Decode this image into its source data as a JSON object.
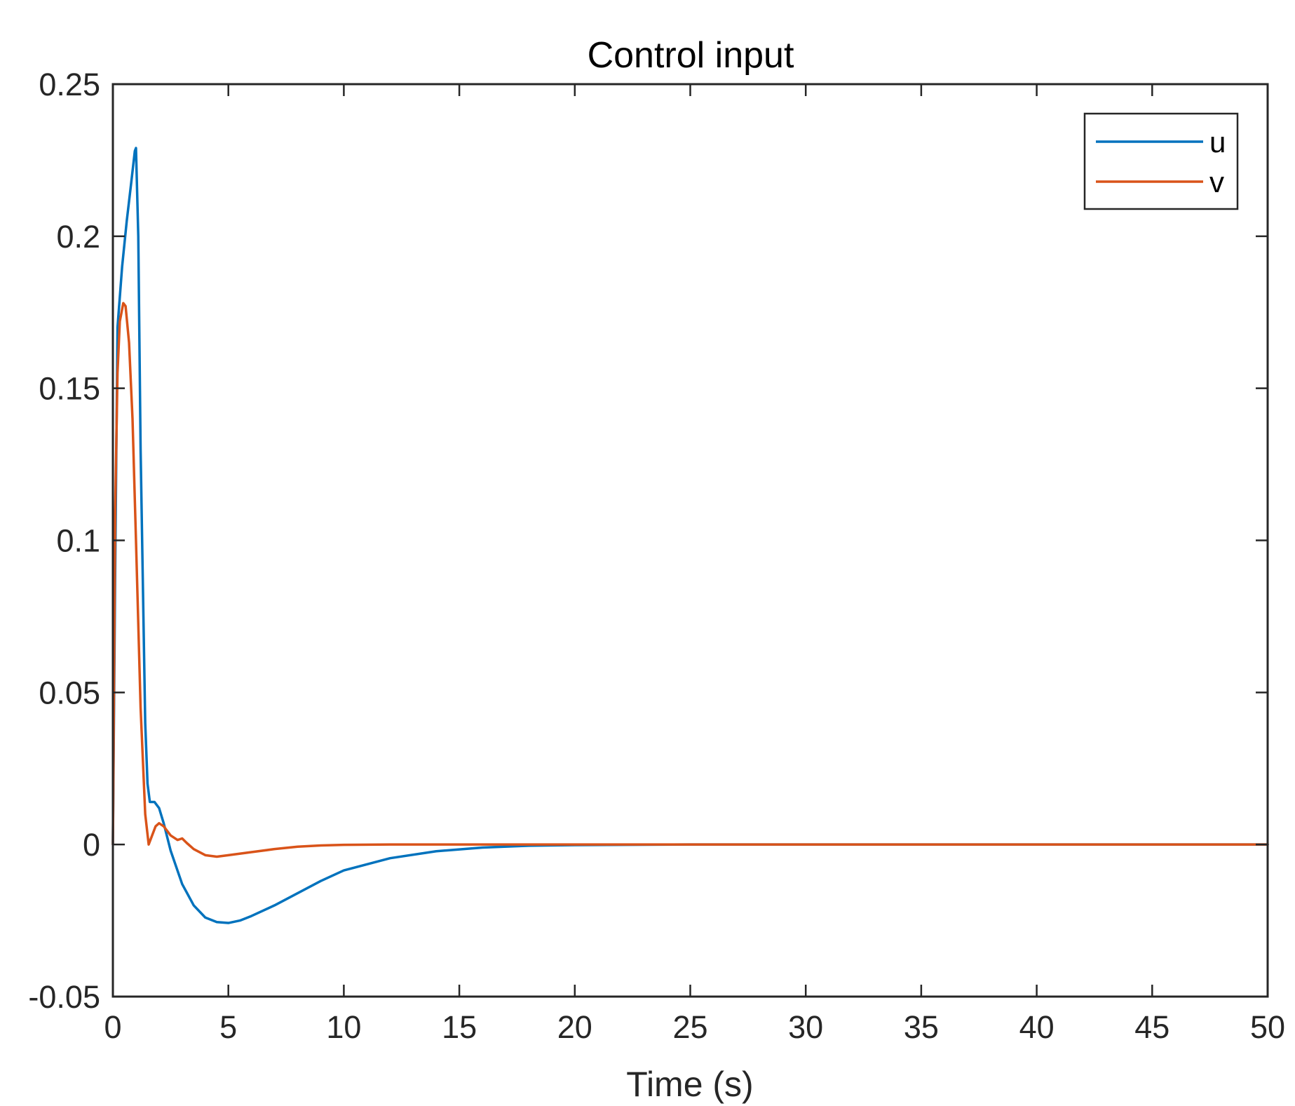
{
  "chart_data": {
    "type": "line",
    "title": "Control input",
    "xlabel": "Time (s)",
    "ylabel": "",
    "xlim": [
      0,
      50
    ],
    "ylim": [
      -0.05,
      0.25
    ],
    "x_ticks": [
      0,
      5,
      10,
      15,
      20,
      25,
      30,
      35,
      40,
      45,
      50
    ],
    "x_tick_labels": [
      "0",
      "5",
      "10",
      "15",
      "20",
      "25",
      "30",
      "35",
      "40",
      "45",
      "50"
    ],
    "y_ticks": [
      -0.05,
      0,
      0.05,
      0.1,
      0.15,
      0.2,
      0.25
    ],
    "y_tick_labels": [
      "-0.05",
      "0",
      "0.05",
      "0.1",
      "0.15",
      "0.2",
      "0.25"
    ],
    "grid": false,
    "legend_position": "top-right",
    "series": [
      {
        "name": "u",
        "color": "#0072BD",
        "x": [
          0,
          0.1,
          0.2,
          0.4,
          0.6,
          0.8,
          0.95,
          1.0,
          1.1,
          1.2,
          1.4,
          1.5,
          1.6,
          1.8,
          2.0,
          2.2,
          2.5,
          3.0,
          3.5,
          4.0,
          4.5,
          5.0,
          5.5,
          6.0,
          7.0,
          8.0,
          9.0,
          10.0,
          12.0,
          14.0,
          16.0,
          18.0,
          20.0,
          25.0,
          30.0,
          35.0,
          40.0,
          45.0,
          50.0
        ],
        "y": [
          0,
          0.09,
          0.17,
          0.19,
          0.205,
          0.218,
          0.228,
          0.229,
          0.2,
          0.13,
          0.04,
          0.02,
          0.014,
          0.014,
          0.012,
          0.007,
          -0.002,
          -0.013,
          -0.02,
          -0.024,
          -0.0255,
          -0.0258,
          -0.025,
          -0.0235,
          -0.02,
          -0.016,
          -0.012,
          -0.0085,
          -0.0045,
          -0.0022,
          -0.001,
          -0.0004,
          -0.0002,
          0,
          0,
          0,
          0,
          0,
          0
        ]
      },
      {
        "name": "v",
        "color": "#D95319",
        "x": [
          0,
          0.1,
          0.2,
          0.3,
          0.45,
          0.55,
          0.7,
          0.85,
          1.0,
          1.2,
          1.4,
          1.55,
          1.7,
          1.85,
          2.0,
          2.2,
          2.5,
          2.8,
          3.0,
          3.2,
          3.5,
          4.0,
          4.5,
          5.0,
          6.0,
          7.0,
          8.0,
          9.0,
          10.0,
          12.0,
          15.0,
          20.0,
          30.0,
          40.0,
          50.0
        ],
        "y": [
          0,
          0.11,
          0.155,
          0.172,
          0.178,
          0.177,
          0.165,
          0.14,
          0.1,
          0.045,
          0.01,
          0.0,
          0.003,
          0.006,
          0.007,
          0.006,
          0.003,
          0.0015,
          0.002,
          0.0005,
          -0.0015,
          -0.0035,
          -0.004,
          -0.0035,
          -0.0025,
          -0.0015,
          -0.0007,
          -0.0003,
          -0.0001,
          0,
          0,
          0,
          0,
          0,
          0
        ]
      }
    ]
  }
}
